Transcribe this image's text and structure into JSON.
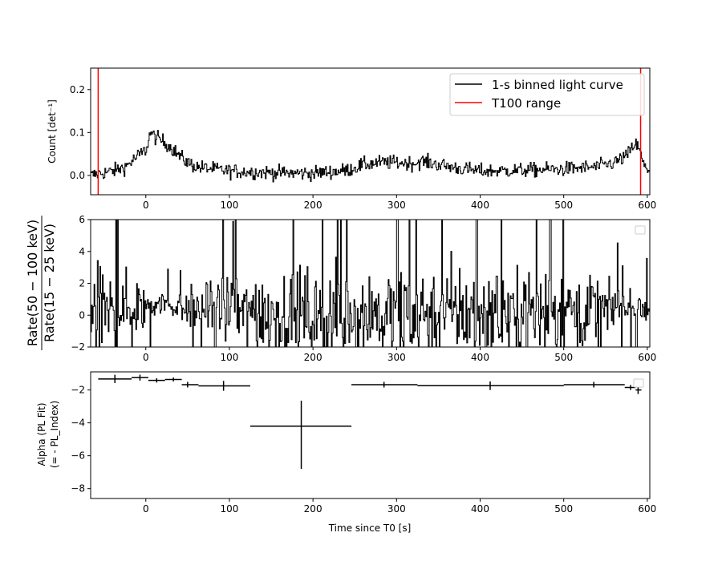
{
  "chart_data": [
    {
      "type": "line",
      "ylabel": "Count [det⁻¹]",
      "xlim": [
        -66,
        603
      ],
      "ylim": [
        -0.045,
        0.25
      ],
      "xticks": [
        0,
        100,
        200,
        300,
        400,
        500,
        600
      ],
      "xtick_labels": [
        "0",
        "100",
        "200",
        "300",
        "400",
        "500",
        "600"
      ],
      "yticks": [
        0.0,
        0.1,
        0.2
      ],
      "ytick_labels": [
        "0.0",
        "0.1",
        "0.2"
      ],
      "legend": {
        "placement": "top-right",
        "entries": [
          "1-s binned light curve",
          "T100 range"
        ]
      },
      "vlines": [
        -57,
        592
      ],
      "series": [
        {
          "name": "1-s binned light curve",
          "color": "#000000",
          "profile": [
            [
              -66,
              0.0
            ],
            [
              -55,
              0.005
            ],
            [
              -40,
              0.01
            ],
            [
              -25,
              0.02
            ],
            [
              -10,
              0.045
            ],
            [
              0,
              0.06
            ],
            [
              5,
              0.1
            ],
            [
              10,
              0.09
            ],
            [
              20,
              0.08
            ],
            [
              30,
              0.065
            ],
            [
              40,
              0.045
            ],
            [
              50,
              0.03
            ],
            [
              60,
              0.02
            ],
            [
              80,
              0.015
            ],
            [
              100,
              0.01
            ],
            [
              130,
              0.008
            ],
            [
              160,
              0.006
            ],
            [
              200,
              0.005
            ],
            [
              240,
              0.012
            ],
            [
              260,
              0.025
            ],
            [
              280,
              0.03
            ],
            [
              300,
              0.03
            ],
            [
              320,
              0.028
            ],
            [
              330,
              0.033
            ],
            [
              350,
              0.025
            ],
            [
              380,
              0.015
            ],
            [
              400,
              0.01
            ],
            [
              450,
              0.012
            ],
            [
              500,
              0.015
            ],
            [
              540,
              0.02
            ],
            [
              560,
              0.03
            ],
            [
              575,
              0.045
            ],
            [
              585,
              0.075
            ],
            [
              590,
              0.06
            ],
            [
              596,
              0.02
            ],
            [
              603,
              0.01
            ]
          ],
          "noise": 0.012
        }
      ],
      "shown_range": [
        -66,
        603
      ]
    },
    {
      "type": "line",
      "ylabel_top": "Rate(50 − 100 keV)",
      "ylabel_bottom": "Rate(15 − 25 keV)",
      "xlim": [
        -66,
        603
      ],
      "ylim": [
        -2,
        6
      ],
      "xticks": [
        0,
        100,
        200,
        300,
        400,
        500,
        600
      ],
      "xtick_labels": [
        "0",
        "100",
        "200",
        "300",
        "400",
        "500",
        "600"
      ],
      "yticks": [
        -2,
        0,
        2,
        4,
        6
      ],
      "ytick_labels": [
        "−2",
        "0",
        "2",
        "4",
        "6"
      ],
      "legend": {
        "placement": "top-right",
        "entries": []
      },
      "series": [
        {
          "color": "#000000",
          "baseline": [
            [
              -66,
              0.2
            ],
            [
              0,
              0.5
            ],
            [
              20,
              0.8
            ],
            [
              40,
              0.5
            ],
            [
              80,
              0.3
            ],
            [
              200,
              0.1
            ],
            [
              300,
              0.2
            ],
            [
              400,
              0.2
            ],
            [
              500,
              0.3
            ],
            [
              580,
              0.5
            ],
            [
              603,
              0.4
            ]
          ],
          "spread": [
            [
              -66,
              3.5
            ],
            [
              -10,
              2.5
            ],
            [
              10,
              1.0
            ],
            [
              40,
              1.0
            ],
            [
              60,
              2.0
            ],
            [
              130,
              3.5
            ],
            [
              250,
              3.5
            ],
            [
              400,
              4.0
            ],
            [
              520,
              3.5
            ],
            [
              560,
              1.5
            ],
            [
              603,
              1.2
            ]
          ]
        }
      ],
      "shown_range": [
        -66,
        603
      ]
    },
    {
      "type": "scatter",
      "xlabel": "Time since T0 [s]",
      "ylabel": "Alpha (PL Fit)",
      "ylabel2": "(=  - PL_Index)",
      "xlim": [
        -66,
        603
      ],
      "ylim": [
        -8.6,
        -0.9
      ],
      "xticks": [
        0,
        100,
        200,
        300,
        400,
        500,
        600
      ],
      "xtick_labels": [
        "0",
        "100",
        "200",
        "300",
        "400",
        "500",
        "600"
      ],
      "yticks": [
        -8,
        -6,
        -4,
        -2
      ],
      "ytick_labels": [
        "−8",
        "−6",
        "−4",
        "−2"
      ],
      "legend": {
        "placement": "top-right",
        "entries": []
      },
      "points": [
        {
          "x": -37,
          "xlo": -57,
          "xhi": -17,
          "y": -1.33,
          "ylo": -1.58,
          "yhi": -1.08
        },
        {
          "x": -7,
          "xlo": -17,
          "xhi": 3,
          "y": -1.25,
          "ylo": -1.43,
          "yhi": -1.07
        },
        {
          "x": 13,
          "xlo": 3,
          "xhi": 23,
          "y": -1.42,
          "ylo": -1.55,
          "yhi": -1.29
        },
        {
          "x": 33,
          "xlo": 23,
          "xhi": 43,
          "y": -1.36,
          "ylo": -1.48,
          "yhi": -1.24
        },
        {
          "x": 50,
          "xlo": 43,
          "xhi": 63,
          "y": -1.68,
          "ylo": -1.85,
          "yhi": -1.51
        },
        {
          "x": 93,
          "xlo": 63,
          "xhi": 125,
          "y": -1.75,
          "ylo": -2.05,
          "yhi": -1.45
        },
        {
          "x": 186,
          "xlo": 125,
          "xhi": 246,
          "y": -4.2,
          "ylo": -6.8,
          "yhi": -2.65
        },
        {
          "x": 285,
          "xlo": 246,
          "xhi": 325,
          "y": -1.68,
          "ylo": -1.85,
          "yhi": -1.51
        },
        {
          "x": 412,
          "xlo": 325,
          "xhi": 500,
          "y": -1.74,
          "ylo": -2.0,
          "yhi": -1.48
        },
        {
          "x": 536,
          "xlo": 500,
          "xhi": 573,
          "y": -1.68,
          "ylo": -1.85,
          "yhi": -1.51
        },
        {
          "x": 580,
          "xlo": 573,
          "xhi": 586,
          "y": -1.85,
          "ylo": -2.0,
          "yhi": -1.7
        },
        {
          "x": 589,
          "xlo": 586,
          "xhi": 593,
          "y": -2.0,
          "ylo": -2.25,
          "yhi": -1.75
        }
      ]
    }
  ],
  "colors": {
    "axis": "#000000",
    "series": "#000000",
    "t100": "#ff0000",
    "legend_edge": "#cccccc"
  }
}
